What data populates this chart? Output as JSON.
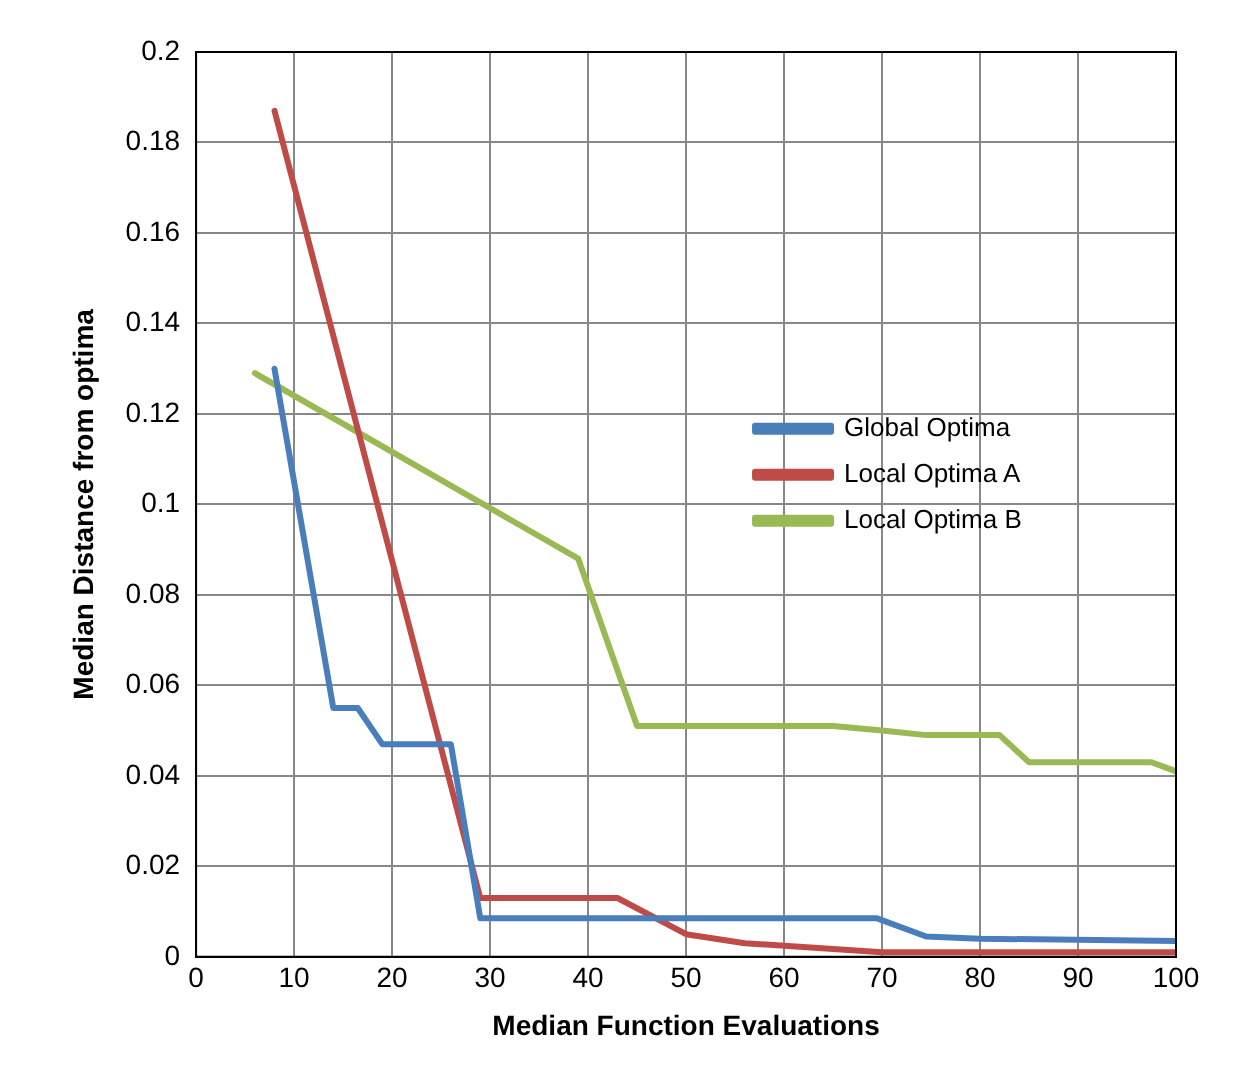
{
  "chart_data": {
    "type": "line",
    "xlabel": "Median Function Evaluations",
    "ylabel": "Median Distance from optima",
    "xlim": [
      0,
      100
    ],
    "xticks": [
      0,
      10,
      20,
      30,
      40,
      50,
      60,
      70,
      80,
      90,
      100
    ],
    "ylim": [
      0,
      0.2
    ],
    "yticks": [
      0,
      0.02,
      0.04,
      0.06,
      0.08,
      0.1,
      0.12,
      0.14,
      0.16,
      0.18,
      0.2
    ],
    "grid": true,
    "legend": "right",
    "marker": "none",
    "line_style": "solid",
    "series": [
      {
        "name": "Global Optima",
        "color": "#4a7ebb",
        "x": [
          8,
          14,
          16.5,
          19,
          26,
          29,
          69.5,
          74.5,
          80,
          100
        ],
        "values": [
          0.13,
          0.055,
          0.055,
          0.047,
          0.047,
          0.0085,
          0.0085,
          0.0045,
          0.004,
          0.0035
        ]
      },
      {
        "name": "Local Optima A",
        "color": "#be4b48",
        "x": [
          8,
          29,
          43,
          50,
          56,
          70,
          100
        ],
        "values": [
          0.187,
          0.013,
          0.013,
          0.005,
          0.003,
          0.001,
          0.001
        ]
      },
      {
        "name": "Local Optima B",
        "color": "#98b954",
        "x": [
          6,
          39,
          45,
          65,
          70,
          74.5,
          82,
          85,
          97.5,
          100
        ],
        "values": [
          0.129,
          0.088,
          0.051,
          0.051,
          0.05,
          0.049,
          0.049,
          0.043,
          0.043,
          0.041
        ]
      }
    ]
  }
}
